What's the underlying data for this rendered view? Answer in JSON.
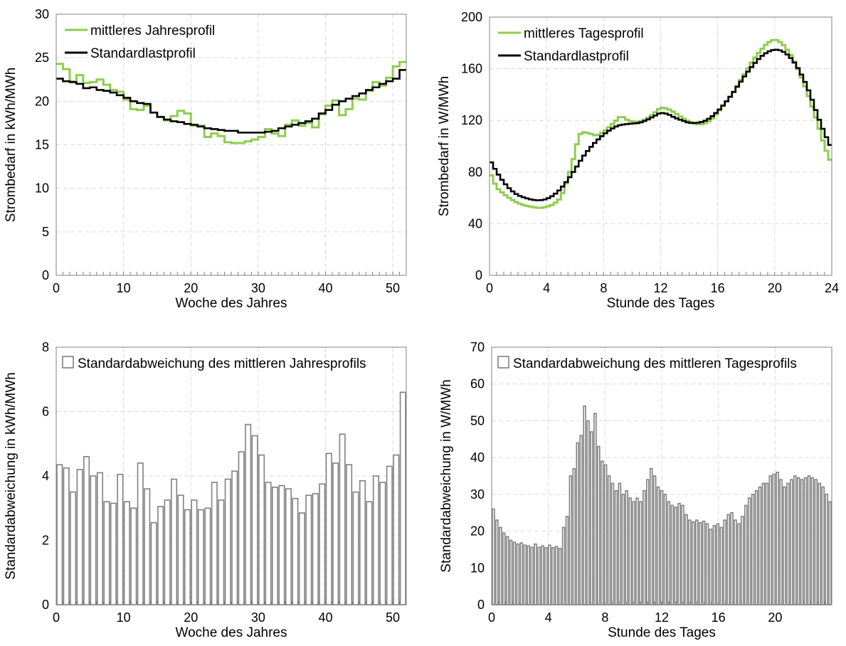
{
  "chart_data": [
    {
      "type": "line",
      "xlabel": "Woche des Jahres",
      "ylabel": "Strombedarf in kWh/MWh",
      "xlim": [
        0,
        52
      ],
      "ylim": [
        0,
        30
      ],
      "xticks": [
        0,
        10,
        20,
        30,
        40,
        50
      ],
      "yticks": [
        0,
        5,
        10,
        15,
        20,
        25,
        30
      ],
      "grid": true,
      "legend": "top-left",
      "step": true,
      "series": [
        {
          "name": "mittleres Jahresprofil",
          "color": "#8fcd4f",
          "values": [
            24.3,
            23.7,
            22.3,
            23.0,
            22.1,
            22.2,
            22.5,
            21.9,
            21.3,
            21.1,
            20.2,
            19.1,
            19.0,
            19.5,
            18.7,
            18.2,
            17.8,
            18.3,
            18.9,
            18.6,
            17.2,
            17.2,
            15.9,
            16.3,
            16.0,
            15.3,
            15.2,
            15.2,
            15.4,
            15.6,
            15.9,
            16.8,
            16.3,
            16.0,
            17.3,
            17.8,
            17.2,
            17.5,
            17.0,
            18.5,
            19.5,
            20.1,
            18.4,
            19.1,
            20.3,
            20.2,
            21.2,
            22.2,
            21.8,
            22.7,
            24.0,
            24.5
          ]
        },
        {
          "name": "Standardlastprofil",
          "color": "#000000",
          "values": [
            22.6,
            22.3,
            22.2,
            22.0,
            21.5,
            21.6,
            21.3,
            21.2,
            21.0,
            20.7,
            20.4,
            20.0,
            19.8,
            19.7,
            18.7,
            18.2,
            17.9,
            17.7,
            17.6,
            17.4,
            17.3,
            17.1,
            16.9,
            16.8,
            16.7,
            16.6,
            16.6,
            16.4,
            16.4,
            16.4,
            16.4,
            16.5,
            16.6,
            16.9,
            17.1,
            17.3,
            17.5,
            17.7,
            18.0,
            18.6,
            19.0,
            19.6,
            20.0,
            20.3,
            20.6,
            20.9,
            21.3,
            21.6,
            22.0,
            22.3,
            22.6,
            23.6
          ]
        }
      ]
    },
    {
      "type": "line",
      "xlabel": "Stunde des Tages",
      "ylabel": "Strombedarf in W/MWh",
      "xlim": [
        0,
        24
      ],
      "ylim": [
        0,
        200
      ],
      "xticks": [
        0,
        4,
        8,
        12,
        16,
        20,
        24
      ],
      "yticks": [
        0,
        40,
        80,
        120,
        160,
        200
      ],
      "grid": true,
      "legend": "top-left",
      "step": true,
      "resolution_h": 0.25,
      "series": [
        {
          "name": "mittleres Tagesprofil",
          "color": "#8fcd4f",
          "keyframes": [
            [
              0,
              81
            ],
            [
              0.25,
              74
            ],
            [
              0.5,
              68
            ],
            [
              1,
              63
            ],
            [
              1.5,
              59
            ],
            [
              2,
              56
            ],
            [
              2.5,
              54
            ],
            [
              3,
              53
            ],
            [
              3.5,
              52
            ],
            [
              4,
              53
            ],
            [
              4.5,
              55
            ],
            [
              5,
              60
            ],
            [
              5.5,
              75
            ],
            [
              6,
              95
            ],
            [
              6.25,
              108
            ],
            [
              6.5,
              111
            ],
            [
              7,
              110
            ],
            [
              7.5,
              108
            ],
            [
              8,
              111
            ],
            [
              8.5,
              116
            ],
            [
              9,
              121
            ],
            [
              9.25,
              124
            ],
            [
              9.5,
              121
            ],
            [
              10,
              119
            ],
            [
              10.5,
              119
            ],
            [
              11,
              121
            ],
            [
              11.5,
              125
            ],
            [
              12,
              130
            ],
            [
              12.5,
              129
            ],
            [
              13,
              126
            ],
            [
              13.5,
              122
            ],
            [
              14,
              119
            ],
            [
              14.5,
              117
            ],
            [
              15,
              117
            ],
            [
              15.5,
              120
            ],
            [
              16,
              126
            ],
            [
              16.5,
              133
            ],
            [
              17,
              140
            ],
            [
              17.5,
              149
            ],
            [
              18,
              158
            ],
            [
              18.5,
              167
            ],
            [
              19,
              174
            ],
            [
              19.5,
              180
            ],
            [
              20,
              183
            ],
            [
              20.5,
              180
            ],
            [
              21,
              173
            ],
            [
              21.5,
              163
            ],
            [
              22,
              150
            ],
            [
              22.5,
              135
            ],
            [
              23,
              118
            ],
            [
              23.5,
              100
            ],
            [
              24,
              86
            ]
          ]
        },
        {
          "name": "Standardlastprofil",
          "color": "#000000",
          "keyframes": [
            [
              0,
              90
            ],
            [
              0.5,
              80
            ],
            [
              1,
              72
            ],
            [
              1.5,
              66
            ],
            [
              2,
              62
            ],
            [
              2.5,
              60
            ],
            [
              3,
              58.5
            ],
            [
              3.5,
              58
            ],
            [
              4,
              59
            ],
            [
              4.5,
              62
            ],
            [
              5,
              67
            ],
            [
              5.5,
              74
            ],
            [
              6,
              82
            ],
            [
              6.5,
              91
            ],
            [
              7,
              98
            ],
            [
              7.5,
              104
            ],
            [
              8,
              109
            ],
            [
              8.5,
              113
            ],
            [
              9,
              116
            ],
            [
              9.5,
              117
            ],
            [
              10,
              117.5
            ],
            [
              10.5,
              118
            ],
            [
              11,
              120
            ],
            [
              11.5,
              123
            ],
            [
              12,
              126
            ],
            [
              12.5,
              125
            ],
            [
              13,
              122
            ],
            [
              13.5,
              120
            ],
            [
              14,
              118
            ],
            [
              14.5,
              118
            ],
            [
              15,
              119
            ],
            [
              15.5,
              122
            ],
            [
              16,
              127
            ],
            [
              16.5,
              133
            ],
            [
              17,
              140
            ],
            [
              17.5,
              148
            ],
            [
              18,
              156
            ],
            [
              18.5,
              163
            ],
            [
              19,
              169
            ],
            [
              19.5,
              173
            ],
            [
              20,
              175
            ],
            [
              20.5,
              174
            ],
            [
              21,
              170
            ],
            [
              21.5,
              163
            ],
            [
              22,
              153
            ],
            [
              22.5,
              140
            ],
            [
              23,
              124
            ],
            [
              23.5,
              110
            ],
            [
              24,
              98
            ]
          ]
        }
      ]
    },
    {
      "type": "bar",
      "xlabel": "Woche des Jahres",
      "ylabel": "Standardabweichung in kWh/MWh",
      "xlim": [
        0,
        52
      ],
      "ylim": [
        0,
        8
      ],
      "xticks": [
        0,
        10,
        20,
        30,
        40,
        50
      ],
      "yticks": [
        0,
        2,
        4,
        6,
        8
      ],
      "grid": true,
      "legend": "top-left",
      "series": [
        {
          "name": "Standardabweichung des mittleren Jahresprofils",
          "color": "#808080",
          "values": [
            4.35,
            4.25,
            3.5,
            4.2,
            4.6,
            4.0,
            4.1,
            3.2,
            3.15,
            4.05,
            3.2,
            3.0,
            4.4,
            3.6,
            2.55,
            3.05,
            3.25,
            3.9,
            3.4,
            2.95,
            3.25,
            2.95,
            3.0,
            3.8,
            3.25,
            3.9,
            4.15,
            4.75,
            5.6,
            5.25,
            4.65,
            3.8,
            3.65,
            3.7,
            3.6,
            3.3,
            2.85,
            3.4,
            3.45,
            3.75,
            4.7,
            4.4,
            5.3,
            4.35,
            3.5,
            3.85,
            3.2,
            4.0,
            3.8,
            4.3,
            4.65,
            6.6
          ]
        }
      ]
    },
    {
      "type": "bar",
      "xlabel": "Stunde des Tages",
      "ylabel": "Standardabweichung in W/MWh",
      "xlim": [
        0,
        24
      ],
      "ylim": [
        0,
        70
      ],
      "xticks": [
        0,
        4,
        8,
        12,
        16,
        20
      ],
      "yticks": [
        0,
        10,
        20,
        30,
        40,
        50,
        60,
        70
      ],
      "grid": true,
      "legend": "top-left",
      "series": [
        {
          "name": "Standardabweichung des mittleren Tagesprofils",
          "color": "#808080",
          "values": [
            26,
            23,
            21,
            19.5,
            18.5,
            17.5,
            17,
            16.5,
            16.8,
            16.2,
            16,
            15.6,
            16.5,
            15.6,
            16,
            15.5,
            16.2,
            15.5,
            15.8,
            15.3,
            21,
            24,
            35,
            37,
            44,
            46,
            54,
            50,
            47,
            52,
            43,
            39,
            38,
            35,
            33,
            31,
            33,
            30,
            31,
            29,
            28,
            29,
            28,
            31,
            34,
            37,
            35,
            32,
            31,
            30,
            28,
            27,
            26.5,
            27.5,
            27,
            24.5,
            23,
            22.5,
            23,
            22.3,
            22.7,
            22,
            20.5,
            21.5,
            22,
            21,
            23,
            24.5,
            25,
            23,
            22,
            24,
            27,
            29,
            30,
            31,
            32,
            33,
            33,
            35,
            35.5,
            36,
            34,
            32,
            33,
            34,
            35,
            34.5,
            34,
            34.5,
            35,
            34.5,
            34,
            33,
            32,
            30,
            28
          ]
        }
      ]
    }
  ]
}
